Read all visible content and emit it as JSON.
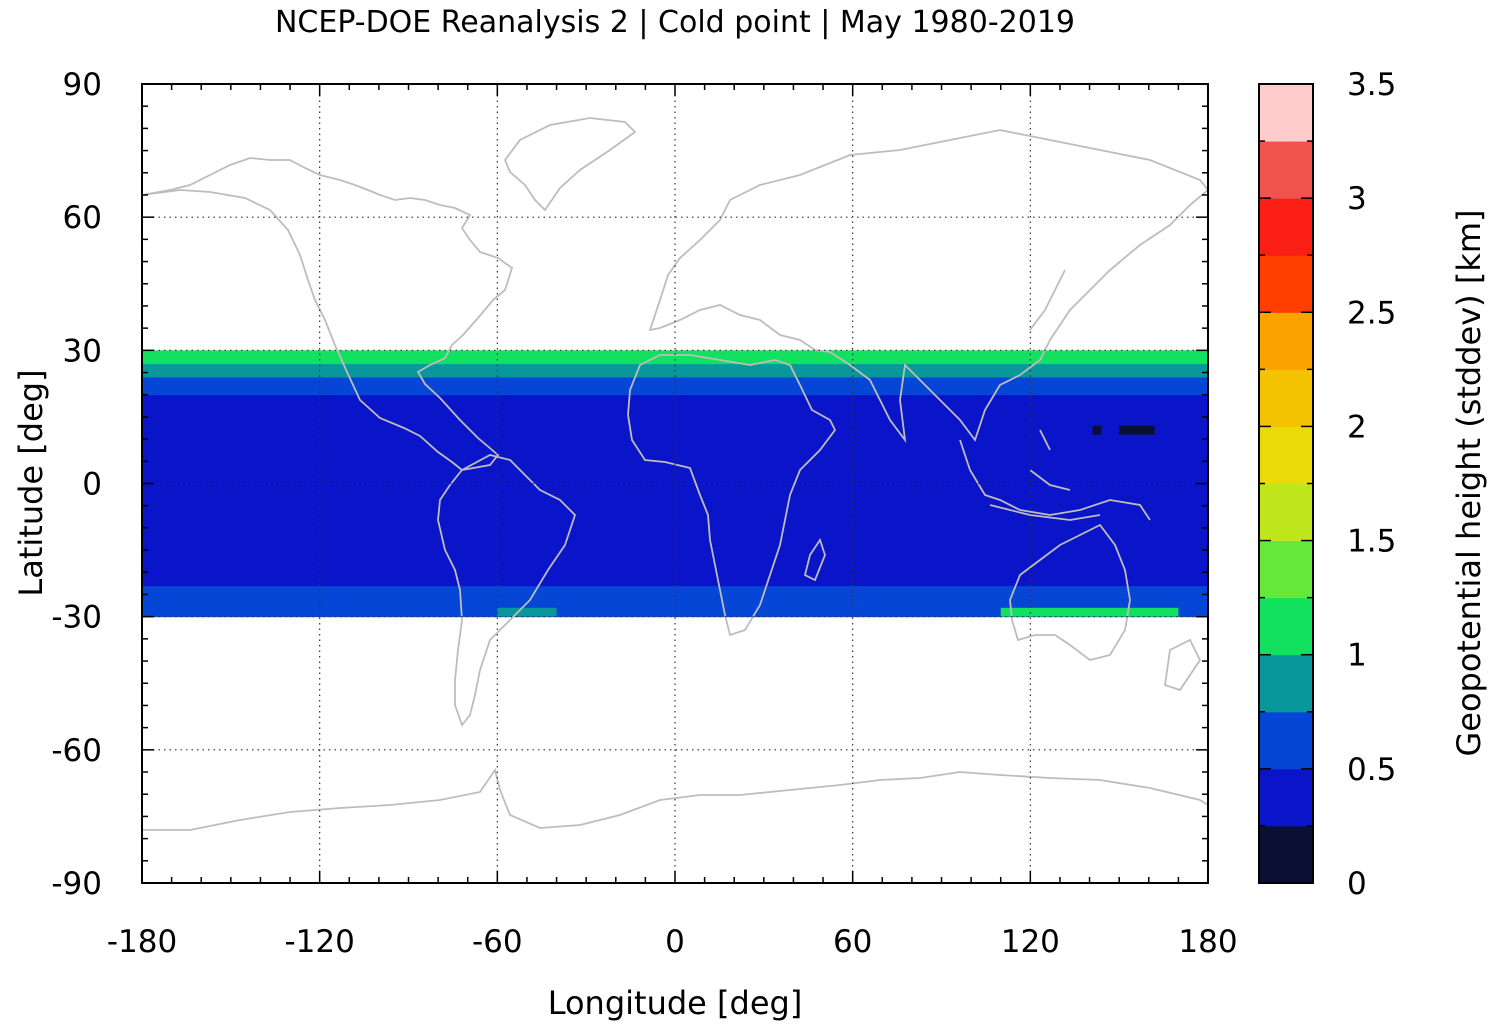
{
  "chart_data": {
    "type": "heatmap",
    "title": "NCEP-DOE Reanalysis 2 | Cold point | May 1980-2019",
    "xlabel": "Longitude [deg]",
    "ylabel": "Latitude [deg]",
    "xlim": [
      -180,
      180
    ],
    "ylim": [
      -90,
      90
    ],
    "x_ticks": [
      -180,
      -120,
      -60,
      0,
      60,
      120,
      180
    ],
    "y_ticks": [
      -90,
      -60,
      -30,
      0,
      30,
      60,
      90
    ],
    "x_tick_labels": [
      "-180",
      "-120",
      "-60",
      "0",
      "60",
      "120",
      "180"
    ],
    "y_tick_labels": [
      "-90",
      "-60",
      "-30",
      "0",
      "30",
      "60",
      "90"
    ],
    "grid": true,
    "data_lat_range": [
      -30,
      30
    ],
    "colorbar": {
      "label": "Geopotential height (stddev) [km]",
      "range": [
        0,
        3.5
      ],
      "tick_values": [
        0,
        0.5,
        1,
        1.5,
        2,
        2.5,
        3,
        3.5
      ],
      "tick_labels": [
        "0",
        "0.5",
        "1",
        "1.5",
        "2",
        "2.5",
        "3",
        "3.5"
      ],
      "levels": [
        0,
        0.25,
        0.5,
        0.75,
        1,
        1.25,
        1.5,
        1.75,
        2,
        2.25,
        2.5,
        2.75,
        3,
        3.25,
        3.5
      ],
      "colors": [
        "#0b0f33",
        "#0a14c8",
        "#0546d6",
        "#08979a",
        "#12e160",
        "#66e83a",
        "#bfe61b",
        "#e8db08",
        "#f4c200",
        "#fca300",
        "#ff3e00",
        "#fa1e14",
        "#f0534e",
        "#ffcccc"
      ]
    },
    "bands": [
      {
        "lat_range": [
          -30,
          -27
        ],
        "value": 0.6
      },
      {
        "lat_range": [
          -27,
          -23
        ],
        "value": 0.55
      },
      {
        "lat_range": [
          -23,
          20
        ],
        "value": 0.35
      },
      {
        "lat_range": [
          20,
          24
        ],
        "value": 0.55
      },
      {
        "lat_range": [
          24,
          27
        ],
        "value": 0.85
      },
      {
        "lat_range": [
          27,
          30
        ],
        "value": 1.05
      }
    ],
    "patches": [
      {
        "lon_range": [
          -60,
          -40
        ],
        "lat_range": [
          -30,
          -28
        ],
        "value": 0.9
      },
      {
        "lon_range": [
          110,
          170
        ],
        "lat_range": [
          -30,
          -28
        ],
        "value": 1.05
      },
      {
        "lon_range": [
          -180,
          -160
        ],
        "lat_range": [
          -29,
          -27
        ],
        "value": 0.55
      },
      {
        "lon_range": [
          141,
          144
        ],
        "lat_range": [
          11,
          13
        ],
        "value": 0.1
      },
      {
        "lon_range": [
          150,
          162
        ],
        "lat_range": [
          11,
          13
        ],
        "value": 0.1
      }
    ]
  }
}
